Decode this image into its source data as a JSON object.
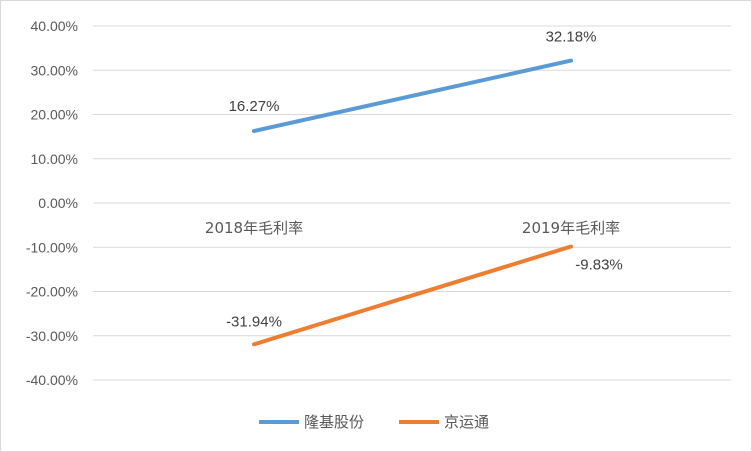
{
  "chart_data": {
    "type": "line",
    "categories": [
      "2018年毛利率",
      "2019年毛利率"
    ],
    "series": [
      {
        "name": "隆基股份",
        "values": [
          16.27,
          32.18
        ],
        "labels": [
          "16.27%",
          "32.18%"
        ],
        "color": "#5b9bd5"
      },
      {
        "name": "京运通",
        "values": [
          -31.94,
          -9.83
        ],
        "labels": [
          "-31.94%",
          "-9.83%"
        ],
        "color": "#ed7d31"
      }
    ],
    "yticks": [
      "40.00%",
      "30.00%",
      "20.00%",
      "10.00%",
      "0.00%",
      "-10.00%",
      "-20.00%",
      "-30.00%",
      "-40.00%"
    ],
    "ylim": [
      -40,
      40
    ],
    "y_step": 10,
    "grid": true,
    "legend": "bottom",
    "gridline_color": "#d9d9d9"
  }
}
